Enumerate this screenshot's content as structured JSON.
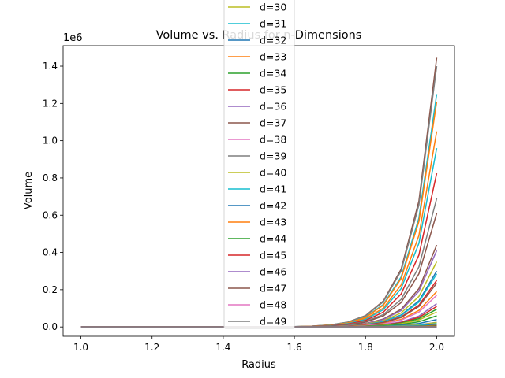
{
  "chart_data": {
    "type": "line",
    "title": "Volume vs. Radius for n-Dimensions",
    "xlabel": "Radius",
    "ylabel": "Volume",
    "y_offset_label": "1e6",
    "xlim": [
      0.95,
      2.05
    ],
    "ylim": [
      -50000,
      1510000
    ],
    "x_ticks": [
      1.0,
      1.2,
      1.4,
      1.6,
      1.8,
      2.0
    ],
    "x_tick_labels": [
      "1.0",
      "1.2",
      "1.4",
      "1.6",
      "1.8",
      "2.0"
    ],
    "y_ticks": [
      0,
      200000,
      400000,
      600000,
      800000,
      1000000,
      1200000,
      1400000
    ],
    "y_tick_labels": [
      "0.0",
      "0.2",
      "0.4",
      "0.6",
      "0.8",
      "1.0",
      "1.2",
      "1.4"
    ],
    "grid": false,
    "legend_placement": "upper center (overflowing above the plot)",
    "x": [
      1.0,
      1.05,
      1.1,
      1.15,
      1.2,
      1.25,
      1.3,
      1.35,
      1.4,
      1.45,
      1.5,
      1.55,
      1.6,
      1.65,
      1.7,
      1.75,
      1.8,
      1.85,
      1.9,
      1.95,
      2.0
    ],
    "value_model": "unit-ball volume V_d(1) * r^d",
    "series": [
      {
        "name": "d=30",
        "unit_volume": 2.19e-05,
        "color": "#bcbd22"
      },
      {
        "name": "d=31",
        "unit_volume": 8.2e-06,
        "color": "#17becf"
      },
      {
        "name": "d=32",
        "unit_volume": 2.9e-06,
        "color": "#1f77b4"
      },
      {
        "name": "d=33",
        "unit_volume": 9.7e-07,
        "color": "#ff7f0e"
      },
      {
        "name": "d=34",
        "unit_volume": 3.1e-07,
        "color": "#2ca02c"
      },
      {
        "name": "d=35",
        "unit_volume": 9.4e-08,
        "color": "#d62728"
      },
      {
        "name": "d=36",
        "unit_volume": 2.7e-08,
        "color": "#9467bd"
      },
      {
        "name": "d=37",
        "unit_volume": 7.5e-09,
        "color": "#8c564b"
      },
      {
        "name": "d=38",
        "unit_volume": 1.9e-09,
        "color": "#e377c2"
      },
      {
        "name": "d=39",
        "unit_volume": 5e-10,
        "color": "#7f7f7f"
      },
      {
        "name": "d=40",
        "unit_volume": 1.2e-10,
        "color": "#bcbd22"
      },
      {
        "name": "d=41",
        "unit_volume": 2.9e-11,
        "color": "#17becf"
      },
      {
        "name": "d=42",
        "unit_volume": 6.6e-12,
        "color": "#1f77b4"
      },
      {
        "name": "d=43",
        "unit_volume": 1.4e-12,
        "color": "#ff7f0e"
      },
      {
        "name": "d=44",
        "unit_volume": 3e-13,
        "color": "#2ca02c"
      },
      {
        "name": "d=45",
        "unit_volume": 6.1e-14,
        "color": "#d62728"
      },
      {
        "name": "d=46",
        "unit_volume": 1.2e-14,
        "color": "#9467bd"
      },
      {
        "name": "d=47",
        "unit_volume": 2.3e-15,
        "color": "#8c564b"
      },
      {
        "name": "d=48",
        "unit_volume": 4.3e-16,
        "color": "#e377c2"
      },
      {
        "name": "d=49",
        "unit_volume": 7.7e-17,
        "color": "#7f7f7f"
      }
    ],
    "background_series": [
      {
        "end_value": 1445000,
        "color": "#8c564b"
      },
      {
        "end_value": 1400000,
        "color": "#7f7f7f"
      },
      {
        "end_value": 1250000,
        "color": "#17becf"
      },
      {
        "end_value": 1210000,
        "color": "#ff7f0e"
      },
      {
        "end_value": 1050000,
        "color": "#ff7f0e"
      },
      {
        "end_value": 960000,
        "color": "#17becf"
      },
      {
        "end_value": 825000,
        "color": "#d62728"
      },
      {
        "end_value": 690000,
        "color": "#7f7f7f"
      },
      {
        "end_value": 610000,
        "color": "#8c564b"
      },
      {
        "end_value": 440000,
        "color": "#8c564b"
      },
      {
        "end_value": 410000,
        "color": "#9467bd"
      },
      {
        "end_value": 350000,
        "color": "#bcbd22"
      },
      {
        "end_value": 300000,
        "color": "#1f77b4"
      },
      {
        "end_value": 285000,
        "color": "#17becf"
      },
      {
        "end_value": 250000,
        "color": "#d62728"
      },
      {
        "end_value": 235000,
        "color": "#8c564b"
      },
      {
        "end_value": 190000,
        "color": "#ff7f0e"
      },
      {
        "end_value": 170000,
        "color": "#e377c2"
      },
      {
        "end_value": 125000,
        "color": "#9467bd"
      },
      {
        "end_value": 110000,
        "color": "#d62728"
      },
      {
        "end_value": 95000,
        "color": "#2ca02c"
      },
      {
        "end_value": 80000,
        "color": "#bcbd22"
      },
      {
        "end_value": 60000,
        "color": "#2ca02c"
      },
      {
        "end_value": 40000,
        "color": "#1f77b4"
      },
      {
        "end_value": 25000,
        "color": "#7f7f7f"
      },
      {
        "end_value": 12000,
        "color": "#e377c2"
      }
    ]
  }
}
